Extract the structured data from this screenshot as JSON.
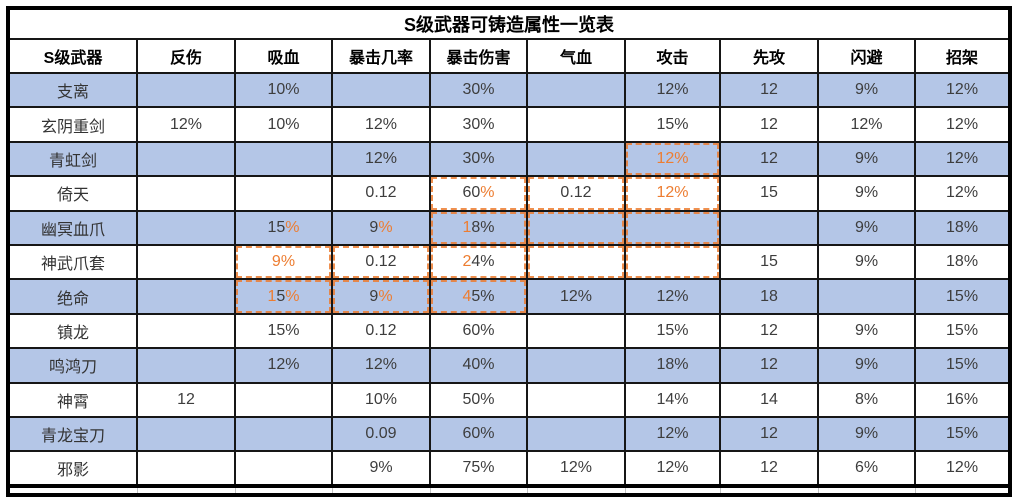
{
  "title": "S级武器可铸造属性一览表",
  "colors": {
    "row_highlight_blue": "#b4c6e7",
    "annotation_orange": "#ed7d31",
    "grid_line": "#161616",
    "value_text": "#3d3d3d"
  },
  "chart_data": {
    "type": "table",
    "title": "S级武器可铸造属性一览表",
    "columns": [
      "S级武器",
      "反伤",
      "吸血",
      "暴击几率",
      "暴击伤害",
      "气血",
      "攻击",
      "先攻",
      "闪避",
      "招架"
    ],
    "rows": [
      [
        "支离",
        "",
        "10%",
        "",
        "30%",
        "",
        "12%",
        "12",
        "9%",
        "12%"
      ],
      [
        "玄阴重剑",
        "12%",
        "10%",
        "12%",
        "30%",
        "",
        "15%",
        "12",
        "12%",
        "12%"
      ],
      [
        "青虹剑",
        "",
        "",
        "12%",
        "30%",
        "",
        "12%",
        "12",
        "9%",
        "12%"
      ],
      [
        "倚天",
        "",
        "",
        "0.12",
        "60%",
        "0.12",
        "12%",
        "15",
        "9%",
        "12%"
      ],
      [
        "幽冥血爪",
        "",
        "15%",
        "9%",
        "18%",
        "",
        "",
        "",
        "9%",
        "18%"
      ],
      [
        "神武爪套",
        "",
        "9%",
        "0.12",
        "24%",
        "",
        "",
        "15",
        "9%",
        "18%"
      ],
      [
        "绝命",
        "",
        "15%",
        "9%",
        "45%",
        "12%",
        "12%",
        "18",
        "",
        "15%"
      ],
      [
        "镇龙",
        "",
        "15%",
        "0.12",
        "60%",
        "",
        "15%",
        "12",
        "9%",
        "15%"
      ],
      [
        "鸣鸿刀",
        "",
        "12%",
        "12%",
        "40%",
        "",
        "18%",
        "12",
        "9%",
        "15%"
      ],
      [
        "神霄",
        "12",
        "",
        "10%",
        "50%",
        "",
        "14%",
        "14",
        "8%",
        "16%"
      ],
      [
        "青龙宝刀",
        "",
        "",
        "0.09",
        "60%",
        "",
        "12%",
        "12",
        "9%",
        "15%"
      ],
      [
        "邪影",
        "",
        "",
        "9%",
        "75%",
        "12%",
        "12%",
        "12",
        "6%",
        "12%"
      ]
    ],
    "zebra_start": "blue",
    "partial_next_row_visible": true
  },
  "annotations": {
    "style": "hand-drawn dashed orange rectangles over cells",
    "color": "#ed7d31",
    "dashed_cells": [
      [
        2,
        6
      ],
      [
        3,
        4
      ],
      [
        3,
        5
      ],
      [
        3,
        6
      ],
      [
        4,
        4
      ],
      [
        4,
        5
      ],
      [
        4,
        6
      ],
      [
        5,
        2
      ],
      [
        5,
        3
      ],
      [
        5,
        4
      ],
      [
        5,
        5
      ],
      [
        5,
        6
      ],
      [
        6,
        2
      ],
      [
        6,
        3
      ],
      [
        6,
        4
      ]
    ],
    "orange_chars": {
      "2,6": [
        0,
        1,
        2
      ],
      "3,4": [
        2
      ],
      "3,6": [
        0,
        1,
        2
      ],
      "4,2": [
        2
      ],
      "4,3": [
        1
      ],
      "4,4": [
        0
      ],
      "5,2": [
        0,
        1
      ],
      "5,4": [
        0
      ],
      "6,2": [
        0,
        2
      ],
      "6,3": [
        1
      ],
      "6,4": [
        0
      ]
    }
  }
}
